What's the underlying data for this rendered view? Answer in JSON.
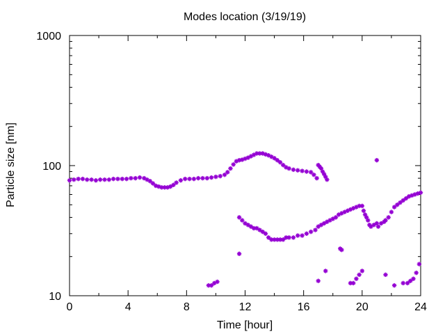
{
  "chart_data": {
    "type": "scatter",
    "title": "Modes location (3/19/19)",
    "xlabel": "Time [hour]",
    "ylabel": "Particle size [nm]",
    "xlim": [
      0,
      24
    ],
    "ylim": [
      10,
      1000
    ],
    "yscale": "log",
    "grid": false,
    "legend": "none",
    "xticks": [
      0,
      4,
      8,
      12,
      16,
      20,
      24
    ],
    "xtick_labels": [
      "0",
      "4",
      "8",
      "12",
      "16",
      "20",
      "24"
    ],
    "yticks": [
      10,
      100,
      1000
    ],
    "ytick_labels": [
      "10",
      "100",
      "1000"
    ],
    "marker_color": "#9400d3",
    "series": [
      {
        "values": [
          [
            0.0,
            77
          ],
          [
            0.3,
            78
          ],
          [
            0.6,
            79
          ],
          [
            0.9,
            79
          ],
          [
            1.2,
            78
          ],
          [
            1.5,
            78
          ],
          [
            1.8,
            77
          ],
          [
            2.1,
            78
          ],
          [
            2.4,
            78
          ],
          [
            2.7,
            78
          ],
          [
            3.0,
            79
          ],
          [
            3.3,
            79
          ],
          [
            3.6,
            79
          ],
          [
            3.9,
            79
          ],
          [
            4.2,
            80
          ],
          [
            4.5,
            80
          ],
          [
            4.8,
            81
          ],
          [
            5.1,
            80
          ],
          [
            5.3,
            78
          ],
          [
            5.5,
            76
          ],
          [
            5.7,
            73
          ],
          [
            5.9,
            70
          ],
          [
            6.1,
            69
          ],
          [
            6.3,
            68
          ],
          [
            6.5,
            68
          ],
          [
            6.7,
            68
          ],
          [
            6.9,
            69
          ],
          [
            7.1,
            71
          ],
          [
            7.3,
            74
          ],
          [
            7.6,
            77
          ],
          [
            7.9,
            79
          ],
          [
            8.2,
            79
          ],
          [
            8.5,
            79
          ],
          [
            8.8,
            80
          ],
          [
            9.1,
            80
          ],
          [
            9.4,
            80
          ],
          [
            9.7,
            81
          ],
          [
            10.0,
            82
          ],
          [
            10.3,
            83
          ],
          [
            10.6,
            85
          ],
          [
            10.8,
            89
          ],
          [
            11.0,
            95
          ],
          [
            11.2,
            102
          ],
          [
            11.4,
            108
          ],
          [
            11.6,
            110
          ],
          [
            11.8,
            111
          ],
          [
            12.0,
            113
          ],
          [
            12.2,
            115
          ],
          [
            12.4,
            118
          ],
          [
            12.6,
            121
          ],
          [
            12.8,
            124
          ],
          [
            13.0,
            124
          ],
          [
            13.2,
            124
          ],
          [
            13.4,
            122
          ],
          [
            13.6,
            120
          ],
          [
            13.8,
            117
          ],
          [
            14.0,
            114
          ],
          [
            14.2,
            110
          ],
          [
            14.4,
            106
          ],
          [
            14.6,
            101
          ],
          [
            14.8,
            97
          ],
          [
            15.0,
            95
          ],
          [
            15.3,
            93
          ],
          [
            15.6,
            92
          ],
          [
            15.9,
            91
          ],
          [
            16.2,
            90
          ],
          [
            16.5,
            89
          ],
          [
            16.7,
            85
          ],
          [
            16.9,
            80
          ],
          [
            17.0,
            101
          ],
          [
            17.1,
            98
          ],
          [
            17.2,
            95
          ],
          [
            17.3,
            90
          ],
          [
            17.4,
            86
          ],
          [
            17.5,
            82
          ],
          [
            17.6,
            78
          ],
          [
            21.0,
            110
          ]
        ]
      },
      {
        "values": [
          [
            11.6,
            40
          ],
          [
            11.8,
            38
          ],
          [
            12.0,
            36
          ],
          [
            12.2,
            35
          ],
          [
            12.4,
            34
          ],
          [
            12.6,
            33
          ],
          [
            12.8,
            33
          ],
          [
            13.0,
            32
          ],
          [
            13.2,
            31
          ],
          [
            13.4,
            30
          ],
          [
            13.6,
            28
          ],
          [
            13.8,
            27
          ],
          [
            14.0,
            27
          ],
          [
            14.2,
            27
          ],
          [
            14.4,
            27
          ],
          [
            14.6,
            27
          ],
          [
            14.8,
            28
          ],
          [
            15.0,
            28
          ],
          [
            15.3,
            28
          ],
          [
            15.6,
            29
          ],
          [
            15.9,
            29
          ],
          [
            16.2,
            30
          ],
          [
            16.5,
            31
          ],
          [
            16.8,
            32
          ],
          [
            17.0,
            34
          ],
          [
            17.2,
            35
          ],
          [
            17.4,
            36
          ],
          [
            17.6,
            37
          ],
          [
            17.8,
            38
          ],
          [
            18.0,
            39
          ],
          [
            18.2,
            40
          ],
          [
            18.4,
            42
          ],
          [
            18.6,
            43
          ],
          [
            18.8,
            44
          ],
          [
            19.0,
            45
          ],
          [
            19.2,
            46
          ],
          [
            19.4,
            47
          ],
          [
            19.6,
            48
          ],
          [
            19.8,
            49
          ],
          [
            20.0,
            49
          ],
          [
            20.1,
            45
          ],
          [
            20.2,
            42
          ],
          [
            20.3,
            40
          ],
          [
            20.4,
            38
          ],
          [
            20.5,
            35
          ],
          [
            20.6,
            34
          ],
          [
            20.8,
            35
          ],
          [
            21.0,
            36
          ],
          [
            21.1,
            34
          ],
          [
            21.3,
            36
          ],
          [
            21.5,
            37
          ],
          [
            21.6,
            38
          ],
          [
            21.8,
            40
          ],
          [
            22.0,
            44
          ],
          [
            22.2,
            48
          ],
          [
            22.4,
            50
          ],
          [
            22.6,
            52
          ],
          [
            22.8,
            54
          ],
          [
            23.0,
            56
          ],
          [
            23.2,
            58
          ],
          [
            23.4,
            59
          ],
          [
            23.6,
            60
          ],
          [
            23.8,
            61
          ],
          [
            24.0,
            62
          ]
        ]
      },
      {
        "values": [
          [
            9.5,
            12
          ],
          [
            9.7,
            12
          ],
          [
            9.9,
            12.5
          ],
          [
            10.1,
            12.8
          ],
          [
            11.6,
            21
          ],
          [
            17.0,
            13
          ],
          [
            17.5,
            15.5
          ],
          [
            18.5,
            23
          ],
          [
            18.6,
            22.5
          ],
          [
            19.2,
            12.5
          ],
          [
            19.4,
            12.5
          ],
          [
            19.6,
            13.5
          ],
          [
            19.8,
            14.5
          ],
          [
            20.0,
            15.5
          ],
          [
            21.6,
            14.5
          ],
          [
            22.2,
            12
          ],
          [
            22.8,
            12.5
          ],
          [
            23.1,
            12.5
          ],
          [
            23.3,
            13
          ],
          [
            23.5,
            13.5
          ],
          [
            23.7,
            15
          ],
          [
            23.9,
            17.5
          ]
        ]
      }
    ]
  }
}
